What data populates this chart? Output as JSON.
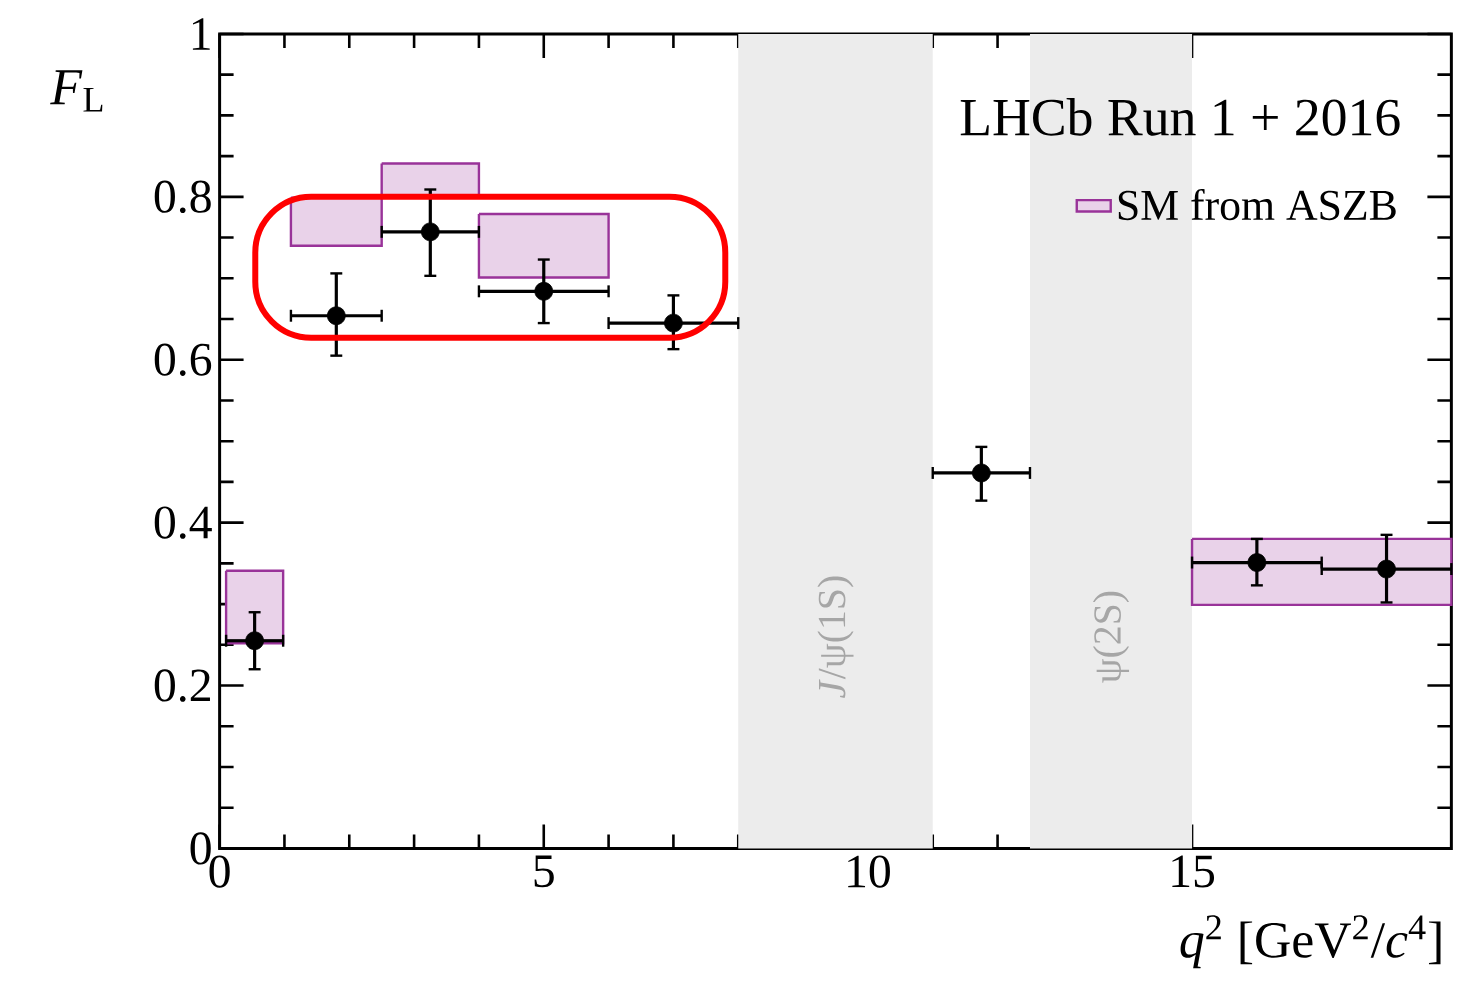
{
  "chart_data": {
    "type": "scatter",
    "annotations": [
      "LHCb Run 1 + 2016"
    ],
    "xlabel": "*q*$^{2}$ [GeV$^{2}$/*c*$^{4}$]",
    "ylabel": "*F*$_{L}$",
    "xlim": [
      0,
      19
    ],
    "ylim": [
      0,
      1
    ],
    "xticks": [
      0,
      5,
      10,
      15
    ],
    "yticks": [
      0,
      0.2,
      0.4,
      0.6,
      0.8,
      1
    ],
    "legend": "top right",
    "bands": [
      {
        "axis": "x",
        "from": 8,
        "to": 11,
        "label": "*J*/ψ(1S)",
        "color": "#ececec"
      },
      {
        "axis": "x",
        "from": 12.5,
        "to": 15,
        "label": "ψ(2S)",
        "color": "#ececec"
      }
    ],
    "series": [
      {
        "name": "SM from ASZB",
        "type": "area",
        "color": "#993399",
        "x": [
          0.1,
          0.98,
          null,
          1.1,
          2.5,
          null,
          2.5,
          4,
          null,
          4,
          6,
          null,
          15,
          19
        ],
        "values": [
          null,
          null,
          null,
          null,
          null,
          null,
          null,
          null,
          null,
          null,
          null,
          null,
          null,
          null
        ],
        "lower": [
          0.252,
          0.252,
          null,
          0.74,
          0.74,
          null,
          0.799,
          0.799,
          null,
          0.701,
          0.701,
          null,
          0.299,
          0.299
        ],
        "upper": [
          0.341,
          0.341,
          null,
          0.799,
          0.799,
          null,
          0.841,
          0.841,
          null,
          0.779,
          0.779,
          null,
          0.38,
          0.38
        ]
      },
      {
        "color": "#000000",
        "x": [
          0.54,
          1.8,
          3.25,
          5,
          7,
          11.75,
          16,
          18
        ],
        "values": [
          0.255,
          0.654,
          0.757,
          0.684,
          0.645,
          0.461,
          0.351,
          0.343
        ],
        "errors": [
          [
            0.22,
            0.29
          ],
          [
            0.605,
            0.706
          ],
          [
            0.703,
            0.809
          ],
          [
            0.645,
            0.723
          ],
          [
            0.613,
            0.679
          ],
          [
            0.427,
            0.493
          ],
          [
            0.323,
            0.38
          ],
          [
            0.302,
            0.385
          ]
        ],
        "xerrors": [
          0.44,
          0.7,
          0.75,
          1,
          1,
          0.75,
          1,
          1
        ]
      }
    ]
  }
}
